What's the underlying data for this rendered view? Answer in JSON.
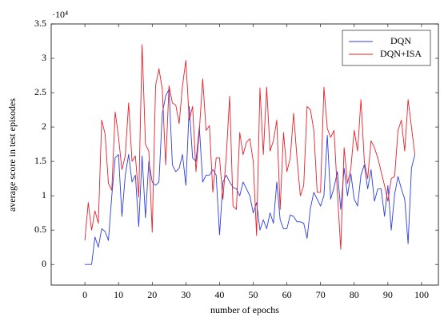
{
  "chart_data": {
    "type": "line",
    "xlabel": "number of epochs",
    "ylabel": "average score in test episodes",
    "y_multiplier": "·10⁴",
    "x": [
      0,
      1,
      2,
      3,
      4,
      5,
      6,
      7,
      8,
      9,
      10,
      11,
      12,
      13,
      14,
      15,
      16,
      17,
      18,
      19,
      20,
      21,
      22,
      23,
      24,
      25,
      26,
      27,
      28,
      29,
      30,
      31,
      32,
      33,
      34,
      35,
      36,
      37,
      38,
      39,
      40,
      41,
      42,
      43,
      44,
      45,
      46,
      47,
      48,
      49,
      50,
      51,
      52,
      53,
      54,
      55,
      56,
      57,
      58,
      59,
      60,
      61,
      62,
      63,
      64,
      65,
      66,
      67,
      68,
      69,
      70,
      71,
      72,
      73,
      74,
      75,
      76,
      77,
      78,
      79,
      80,
      81,
      82,
      83,
      84,
      85,
      86,
      87,
      88,
      89,
      90,
      91,
      92,
      93,
      94,
      95,
      96,
      97,
      98
    ],
    "series": [
      {
        "name": "DQN",
        "color": "#2b3fe0",
        "values": [
          0.0,
          0.0,
          0.0,
          0.4,
          0.25,
          0.52,
          0.48,
          0.35,
          1.0,
          1.55,
          1.6,
          0.7,
          1.3,
          1.6,
          1.2,
          1.3,
          0.55,
          1.58,
          0.68,
          1.5,
          1.2,
          1.15,
          1.2,
          2.2,
          2.45,
          2.55,
          1.45,
          1.35,
          1.4,
          1.6,
          1.15,
          2.3,
          1.55,
          1.5,
          2.0,
          1.2,
          1.3,
          1.3,
          1.38,
          1.3,
          0.43,
          1.2,
          1.3,
          1.2,
          1.12,
          1.1,
          1.0,
          1.2,
          1.1,
          1.0,
          0.75,
          0.9,
          0.5,
          0.65,
          0.52,
          0.75,
          0.6,
          1.2,
          0.65,
          0.52,
          0.52,
          0.72,
          0.7,
          0.62,
          0.62,
          0.6,
          0.38,
          0.82,
          1.05,
          0.95,
          0.85,
          1.0,
          1.88,
          0.95,
          1.12,
          1.35,
          0.8,
          1.4,
          1.0,
          1.32,
          0.95,
          0.85,
          1.3,
          1.45,
          1.1,
          1.38,
          0.92,
          1.1,
          1.1,
          0.7,
          1.15,
          0.5,
          1.02,
          1.28,
          1.1,
          0.95,
          0.3,
          1.4,
          1.6
        ]
      },
      {
        "name": "DQN+ISA",
        "color": "#e8202a",
        "values": [
          0.35,
          0.9,
          0.5,
          0.78,
          0.6,
          2.1,
          1.9,
          1.18,
          1.08,
          2.22,
          1.85,
          1.38,
          1.58,
          2.35,
          1.5,
          1.58,
          0.98,
          3.2,
          1.75,
          1.65,
          0.47,
          2.6,
          2.85,
          2.55,
          1.45,
          2.6,
          2.35,
          2.32,
          2.05,
          2.6,
          2.97,
          2.1,
          2.3,
          1.35,
          1.95,
          2.7,
          1.95,
          2.02,
          1.05,
          1.55,
          1.55,
          0.95,
          1.58,
          2.45,
          0.85,
          0.8,
          1.92,
          1.6,
          1.78,
          1.83,
          1.5,
          0.42,
          2.57,
          1.6,
          2.58,
          1.65,
          1.8,
          2.1,
          0.8,
          1.92,
          1.35,
          1.55,
          2.2,
          1.55,
          1.0,
          1.15,
          2.3,
          2.25,
          1.95,
          1.05,
          1.05,
          2.58,
          1.98,
          1.85,
          1.95,
          1.05,
          0.22,
          1.7,
          1.18,
          1.4,
          1.95,
          1.65,
          2.4,
          1.5,
          1.25,
          1.8,
          1.7,
          1.55,
          1.35,
          1.15,
          0.92,
          1.25,
          1.28,
          1.95,
          2.1,
          1.65,
          2.4,
          2.0,
          1.6
        ]
      }
    ],
    "xlim": [
      -10,
      105
    ],
    "ylim": [
      -0.3,
      3.5
    ],
    "xticks": [
      0,
      10,
      20,
      30,
      40,
      50,
      60,
      70,
      80,
      90,
      100
    ],
    "yticks": [
      0,
      0.5,
      1,
      1.5,
      2,
      2.5,
      3,
      3.5
    ],
    "legend": "top-right"
  }
}
